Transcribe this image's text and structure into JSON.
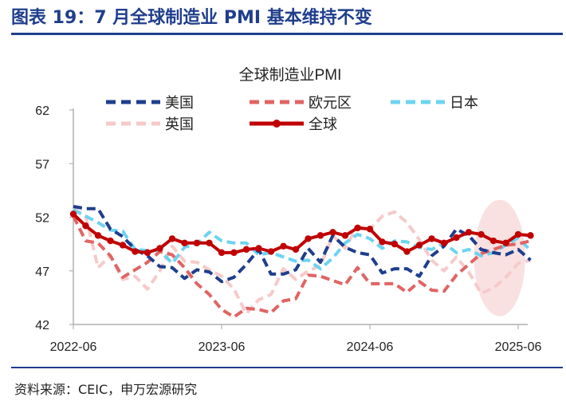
{
  "header": {
    "title": "图表 19：7 月全球制造业 PMI 基本维持不变"
  },
  "footer": {
    "source": "资料来源：CEIC，申万宏源研究"
  },
  "chart_data": {
    "type": "line",
    "title": "全球制造业PMI",
    "xlabel": "",
    "ylabel": "",
    "ylim": [
      42,
      62
    ],
    "yticks": [
      42,
      47,
      52,
      57,
      62
    ],
    "x_tick_labels": [
      "2022-06",
      "2023-06",
      "2024-06",
      "2025-06"
    ],
    "x": [
      "2022-06",
      "2022-07",
      "2022-08",
      "2022-09",
      "2022-10",
      "2022-11",
      "2022-12",
      "2023-01",
      "2023-02",
      "2023-03",
      "2023-04",
      "2023-05",
      "2023-06",
      "2023-07",
      "2023-08",
      "2023-09",
      "2023-10",
      "2023-11",
      "2023-12",
      "2024-01",
      "2024-02",
      "2024-03",
      "2024-04",
      "2024-05",
      "2024-06",
      "2024-07",
      "2024-08",
      "2024-09",
      "2024-10",
      "2024-11",
      "2024-12",
      "2025-01",
      "2025-02",
      "2025-03",
      "2025-04",
      "2025-05",
      "2025-06",
      "2025-07"
    ],
    "legend_position": "top",
    "highlight": "ellipse around the latest months",
    "colors": {
      "美国": "#1F3E8C",
      "欧元区": "#E06464",
      "日本": "#6DD3F0",
      "英国": "#F6CACA",
      "全球": "#C00000",
      "highlight": "#F8DCDC",
      "axis": "#B0B0B0"
    },
    "series": [
      {
        "name": "美国",
        "style": "dashed",
        "values": [
          53.0,
          52.8,
          52.8,
          50.9,
          50.2,
          49.0,
          48.4,
          47.4,
          47.3,
          46.3,
          47.1,
          46.9,
          46.0,
          46.4,
          47.6,
          49.0,
          46.7,
          46.7,
          47.1,
          49.1,
          47.8,
          50.3,
          49.2,
          48.7,
          48.5,
          46.8,
          47.2,
          47.2,
          46.5,
          48.4,
          49.3,
          50.9,
          50.3,
          49.0,
          48.7,
          48.5,
          49.0,
          48.0
        ]
      },
      {
        "name": "欧元区",
        "style": "dashed",
        "values": [
          52.1,
          49.8,
          49.6,
          48.4,
          46.4,
          47.1,
          47.8,
          48.8,
          48.5,
          47.3,
          45.8,
          44.8,
          43.4,
          42.7,
          43.5,
          43.4,
          43.1,
          44.2,
          44.4,
          46.6,
          46.5,
          46.1,
          45.7,
          47.3,
          45.8,
          45.8,
          45.8,
          45.0,
          46.0,
          45.2,
          45.1,
          46.6,
          47.6,
          48.6,
          49.0,
          49.4,
          49.5,
          49.8
        ]
      },
      {
        "name": "日本",
        "style": "dashed",
        "values": [
          52.7,
          52.1,
          51.5,
          50.8,
          50.7,
          49.0,
          48.9,
          48.9,
          47.7,
          49.2,
          49.5,
          50.6,
          49.8,
          49.6,
          49.6,
          48.5,
          48.7,
          48.3,
          47.9,
          48.0,
          47.2,
          48.2,
          49.6,
          50.4,
          50.0,
          49.1,
          49.8,
          49.7,
          49.2,
          49.0,
          49.6,
          48.7,
          49.0,
          48.4,
          48.7,
          49.4,
          50.1,
          48.9
        ]
      },
      {
        "name": "英国",
        "style": "dashed",
        "values": [
          52.8,
          52.1,
          47.3,
          48.4,
          46.2,
          46.5,
          45.3,
          47.0,
          49.3,
          47.9,
          47.8,
          47.1,
          46.5,
          45.3,
          43.0,
          44.3,
          44.8,
          47.2,
          46.2,
          47.0,
          47.5,
          50.3,
          49.1,
          51.2,
          50.9,
          52.1,
          52.5,
          51.5,
          49.9,
          48.0,
          47.0,
          48.3,
          46.9,
          44.9,
          45.4,
          46.4,
          47.7,
          48.0
        ]
      },
      {
        "name": "全球",
        "style": "solid-marker",
        "values": [
          52.3,
          51.2,
          50.3,
          49.8,
          49.4,
          48.8,
          48.7,
          49.1,
          50.0,
          49.6,
          49.6,
          49.6,
          48.7,
          48.7,
          49.0,
          49.1,
          48.8,
          49.3,
          49.0,
          50.0,
          50.3,
          50.6,
          50.3,
          51.0,
          50.9,
          49.7,
          49.5,
          48.8,
          49.4,
          50.0,
          49.6,
          50.1,
          50.6,
          50.4,
          49.8,
          49.6,
          50.4,
          50.3
        ]
      }
    ]
  }
}
